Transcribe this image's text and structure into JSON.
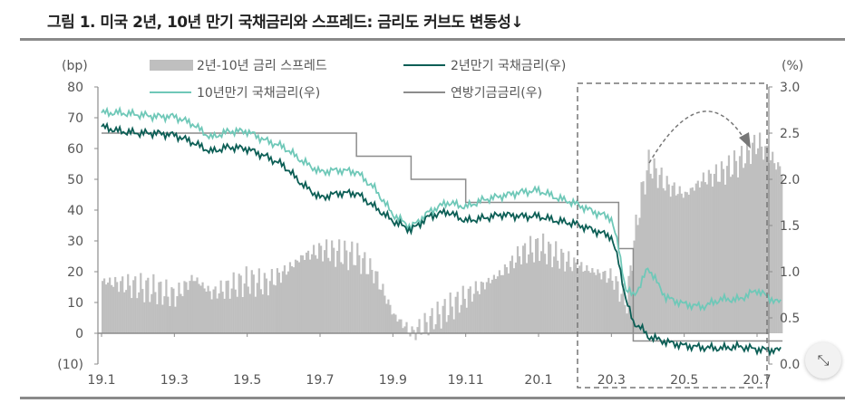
{
  "title": "그림 1. 미국 2년, 10년 만기 국채금리와 스프레드: 금리도 커브도 변동성↓",
  "chart_data": {
    "type": "bar+line",
    "left_axis": {
      "unit_label": "(bp)",
      "range": [
        -10,
        80
      ],
      "ticks": [
        "80",
        "70",
        "60",
        "50",
        "40",
        "30",
        "20",
        "10",
        "0",
        "(10)"
      ]
    },
    "right_axis": {
      "unit_label": "(%)",
      "range": [
        0,
        3.0
      ],
      "ticks": [
        "3.0",
        "2.5",
        "2.0",
        "1.5",
        "1.0",
        "0.5",
        "0.0"
      ]
    },
    "x_axis": {
      "ticks": [
        "19.1",
        "19.3",
        "19.5",
        "19.7",
        "19.9",
        "19.11",
        "20.1",
        "20.3",
        "20.5",
        "20.7"
      ],
      "range_months": [
        0,
        18.7
      ]
    },
    "legend": [
      "2년-10년 금리 스프레드",
      "2년만기 국채금리(우)",
      "10년만기 국채금리(우)",
      "연방기금금리(우)"
    ],
    "x": [
      0,
      0.5,
      1,
      1.5,
      2,
      2.5,
      3,
      3.5,
      4,
      4.5,
      5,
      5.5,
      6,
      6.5,
      7,
      7.5,
      8,
      8.5,
      9,
      9.5,
      10,
      10.5,
      11,
      11.5,
      12,
      12.5,
      13,
      13.5,
      14,
      14.2,
      14.4,
      14.6,
      14.8,
      15,
      15.5,
      16,
      16.5,
      17,
      17.5,
      18,
      18.5,
      18.7
    ],
    "series": [
      {
        "name": "2년-10년 금리 스프레드",
        "axis": "left",
        "type": "bar",
        "color": "#bfbfbf",
        "values": [
          17,
          16,
          15,
          14,
          12,
          18,
          13,
          15,
          17,
          16,
          20,
          25,
          27,
          26,
          25,
          19,
          6,
          0,
          4,
          8,
          12,
          16,
          20,
          26,
          28,
          25,
          22,
          20,
          18,
          14,
          10,
          30,
          45,
          55,
          48,
          45,
          50,
          52,
          56,
          62,
          55,
          52
        ]
      },
      {
        "name": "2년만기 국채금리(우)",
        "axis": "right",
        "type": "line",
        "color": "#0b5e55",
        "values": [
          2.57,
          2.52,
          2.5,
          2.5,
          2.48,
          2.4,
          2.3,
          2.35,
          2.33,
          2.25,
          2.15,
          1.95,
          1.8,
          1.85,
          1.85,
          1.7,
          1.55,
          1.45,
          1.6,
          1.65,
          1.55,
          1.58,
          1.62,
          1.6,
          1.6,
          1.55,
          1.52,
          1.45,
          1.38,
          1.1,
          0.7,
          0.45,
          0.4,
          0.3,
          0.24,
          0.2,
          0.18,
          0.17,
          0.19,
          0.16,
          0.15,
          0.15
        ]
      },
      {
        "name": "10년만기 국채금리(우)",
        "axis": "right",
        "type": "line",
        "color": "#6fc8b8",
        "values": [
          2.72,
          2.72,
          2.7,
          2.68,
          2.68,
          2.6,
          2.45,
          2.52,
          2.52,
          2.42,
          2.35,
          2.2,
          2.08,
          2.1,
          2.08,
          1.9,
          1.62,
          1.48,
          1.65,
          1.75,
          1.7,
          1.78,
          1.82,
          1.86,
          1.88,
          1.8,
          1.74,
          1.65,
          1.58,
          1.25,
          0.8,
          0.75,
          0.85,
          1.05,
          0.72,
          0.65,
          0.62,
          0.7,
          0.7,
          0.8,
          0.68,
          0.66
        ]
      },
      {
        "name": "연방기금금리(우)",
        "axis": "right",
        "type": "step",
        "color": "#8c8c8c",
        "values": [
          2.5,
          2.5,
          2.5,
          2.5,
          2.5,
          2.5,
          2.5,
          2.5,
          2.5,
          2.5,
          2.5,
          2.5,
          2.5,
          2.5,
          2.25,
          2.25,
          2.25,
          2.0,
          2.0,
          2.0,
          1.75,
          1.75,
          1.75,
          1.75,
          1.75,
          1.75,
          1.75,
          1.75,
          1.75,
          1.25,
          1.25,
          0.25,
          0.25,
          0.25,
          0.25,
          0.25,
          0.25,
          0.25,
          0.25,
          0.25,
          0.25,
          0.25
        ]
      }
    ]
  }
}
